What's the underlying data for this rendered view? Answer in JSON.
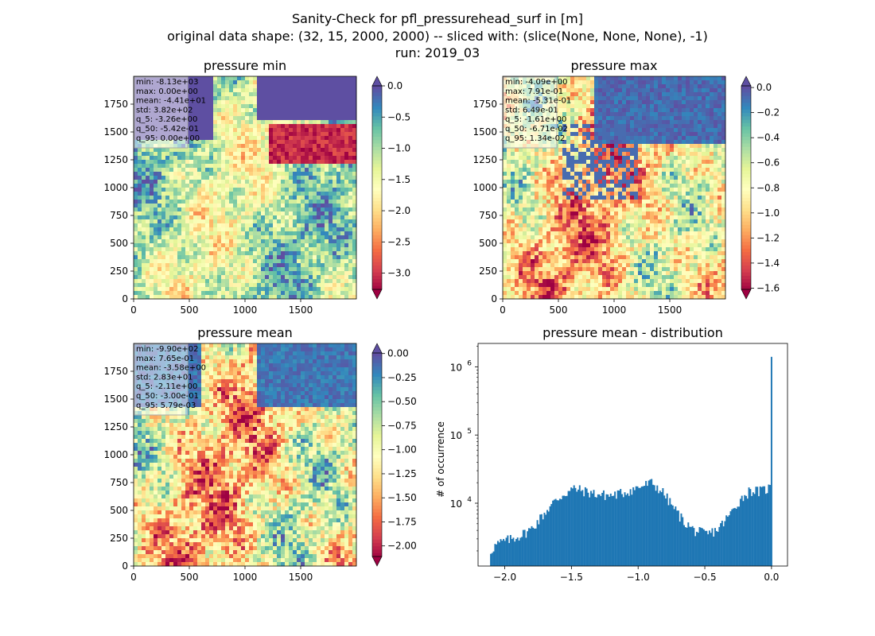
{
  "figure": {
    "title_lines": [
      "Sanity-Check for pfl_pressurehead_surf in [m]",
      "original data shape: (32, 15, 2000, 2000) -- sliced with: (slice(None, None, None), -1)",
      "run: 2019_03"
    ]
  },
  "chart_data": [
    {
      "type": "heatmap",
      "title": "pressure min",
      "colormap": "Spectral",
      "colorbar_extend": "both",
      "xlim": [
        0,
        2000
      ],
      "ylim": [
        0,
        2000
      ],
      "xticks": [
        "0",
        "500",
        "1000",
        "1500"
      ],
      "yticks": [
        "0",
        "250",
        "500",
        "750",
        "1000",
        "1250",
        "1500",
        "1750"
      ],
      "clim": [
        -3.26,
        0.0
      ],
      "colorbar_ticks": [
        "0.0",
        "−0.5",
        "−1.0",
        "−1.5",
        "−2.0",
        "−2.5",
        "−3.0"
      ],
      "stats": [
        "min: -8.13e+03",
        "max: 0.00e+00",
        "mean: -4.41e+01",
        "std: 3.82e+02",
        "q_5: -3.26e+00",
        "q_50: -5.42e-01",
        "q_95: 0.00e+00"
      ]
    },
    {
      "type": "heatmap",
      "title": "pressure max",
      "colormap": "Spectral",
      "colorbar_extend": "both",
      "xlim": [
        0,
        2000
      ],
      "ylim": [
        0,
        2000
      ],
      "xticks": [
        "0",
        "500",
        "1000",
        "1500"
      ],
      "yticks": [
        "0",
        "250",
        "500",
        "750",
        "1000",
        "1250",
        "1500",
        "1750"
      ],
      "clim": [
        -1.61,
        0.0134
      ],
      "colorbar_ticks": [
        "0.0",
        "−0.2",
        "−0.4",
        "−0.6",
        "−0.8",
        "−1.0",
        "−1.2",
        "−1.4",
        "−1.6"
      ],
      "stats": [
        "min: -4.09e+00",
        "max: 7.91e-01",
        "mean: -5.31e-01",
        "std: 6.49e-01",
        "q_5: -1.61e+00",
        "q_50: -6.71e-02",
        "q_95: 1.34e-02"
      ]
    },
    {
      "type": "heatmap",
      "title": "pressure mean",
      "colormap": "Spectral",
      "colorbar_extend": "both",
      "xlim": [
        0,
        2000
      ],
      "ylim": [
        0,
        2000
      ],
      "xticks": [
        "0",
        "500",
        "1000",
        "1500"
      ],
      "yticks": [
        "0",
        "250",
        "500",
        "750",
        "1000",
        "1250",
        "1500",
        "1750"
      ],
      "clim": [
        -2.11,
        0.00579
      ],
      "colorbar_ticks": [
        "0.00",
        "−0.25",
        "−0.50",
        "−0.75",
        "−1.00",
        "−1.25",
        "−1.50",
        "−1.75",
        "−2.00"
      ],
      "stats": [
        "min: -9.90e+02",
        "max: 7.65e-01",
        "mean: -3.58e+00",
        "std: 2.83e+01",
        "q_5: -2.11e+00",
        "q_50: -3.00e-01",
        "q_95: 5.79e-03"
      ]
    },
    {
      "type": "bar",
      "title": "pressure mean - distribution",
      "ylabel": "# of occurrence",
      "xlabel": "",
      "yscale": "log",
      "xlim": [
        -2.2,
        0.12
      ],
      "ylim": [
        1200,
        2200000
      ],
      "xticks": [
        "−2.0",
        "−1.5",
        "−1.0",
        "−0.5",
        "0.0"
      ],
      "yticks": [
        "10^4",
        "10^5",
        "10^6"
      ],
      "color": "#1f77b4",
      "bin_range": [
        -2.11,
        0.005
      ],
      "key_points": [
        [
          -2.11,
          1900
        ],
        [
          -2.09,
          2200
        ],
        [
          -2.06,
          2500
        ],
        [
          -2.0,
          2800
        ],
        [
          -1.95,
          3000
        ],
        [
          -1.88,
          3400
        ],
        [
          -1.8,
          4200
        ],
        [
          -1.72,
          6500
        ],
        [
          -1.64,
          10000
        ],
        [
          -1.56,
          13500
        ],
        [
          -1.48,
          16500
        ],
        [
          -1.4,
          15000
        ],
        [
          -1.3,
          13500
        ],
        [
          -1.2,
          13000
        ],
        [
          -1.1,
          14500
        ],
        [
          -1.0,
          17000
        ],
        [
          -0.9,
          20000
        ],
        [
          -0.82,
          15000
        ],
        [
          -0.74,
          9000
        ],
        [
          -0.66,
          5500
        ],
        [
          -0.58,
          4000
        ],
        [
          -0.48,
          3500
        ],
        [
          -0.4,
          4200
        ],
        [
          -0.32,
          6500
        ],
        [
          -0.24,
          11000
        ],
        [
          -0.16,
          15500
        ],
        [
          -0.08,
          15000
        ],
        [
          -0.01,
          17000
        ],
        [
          0.0,
          20000
        ]
      ],
      "peak": {
        "x": 0.0,
        "y": 1400000
      }
    }
  ]
}
